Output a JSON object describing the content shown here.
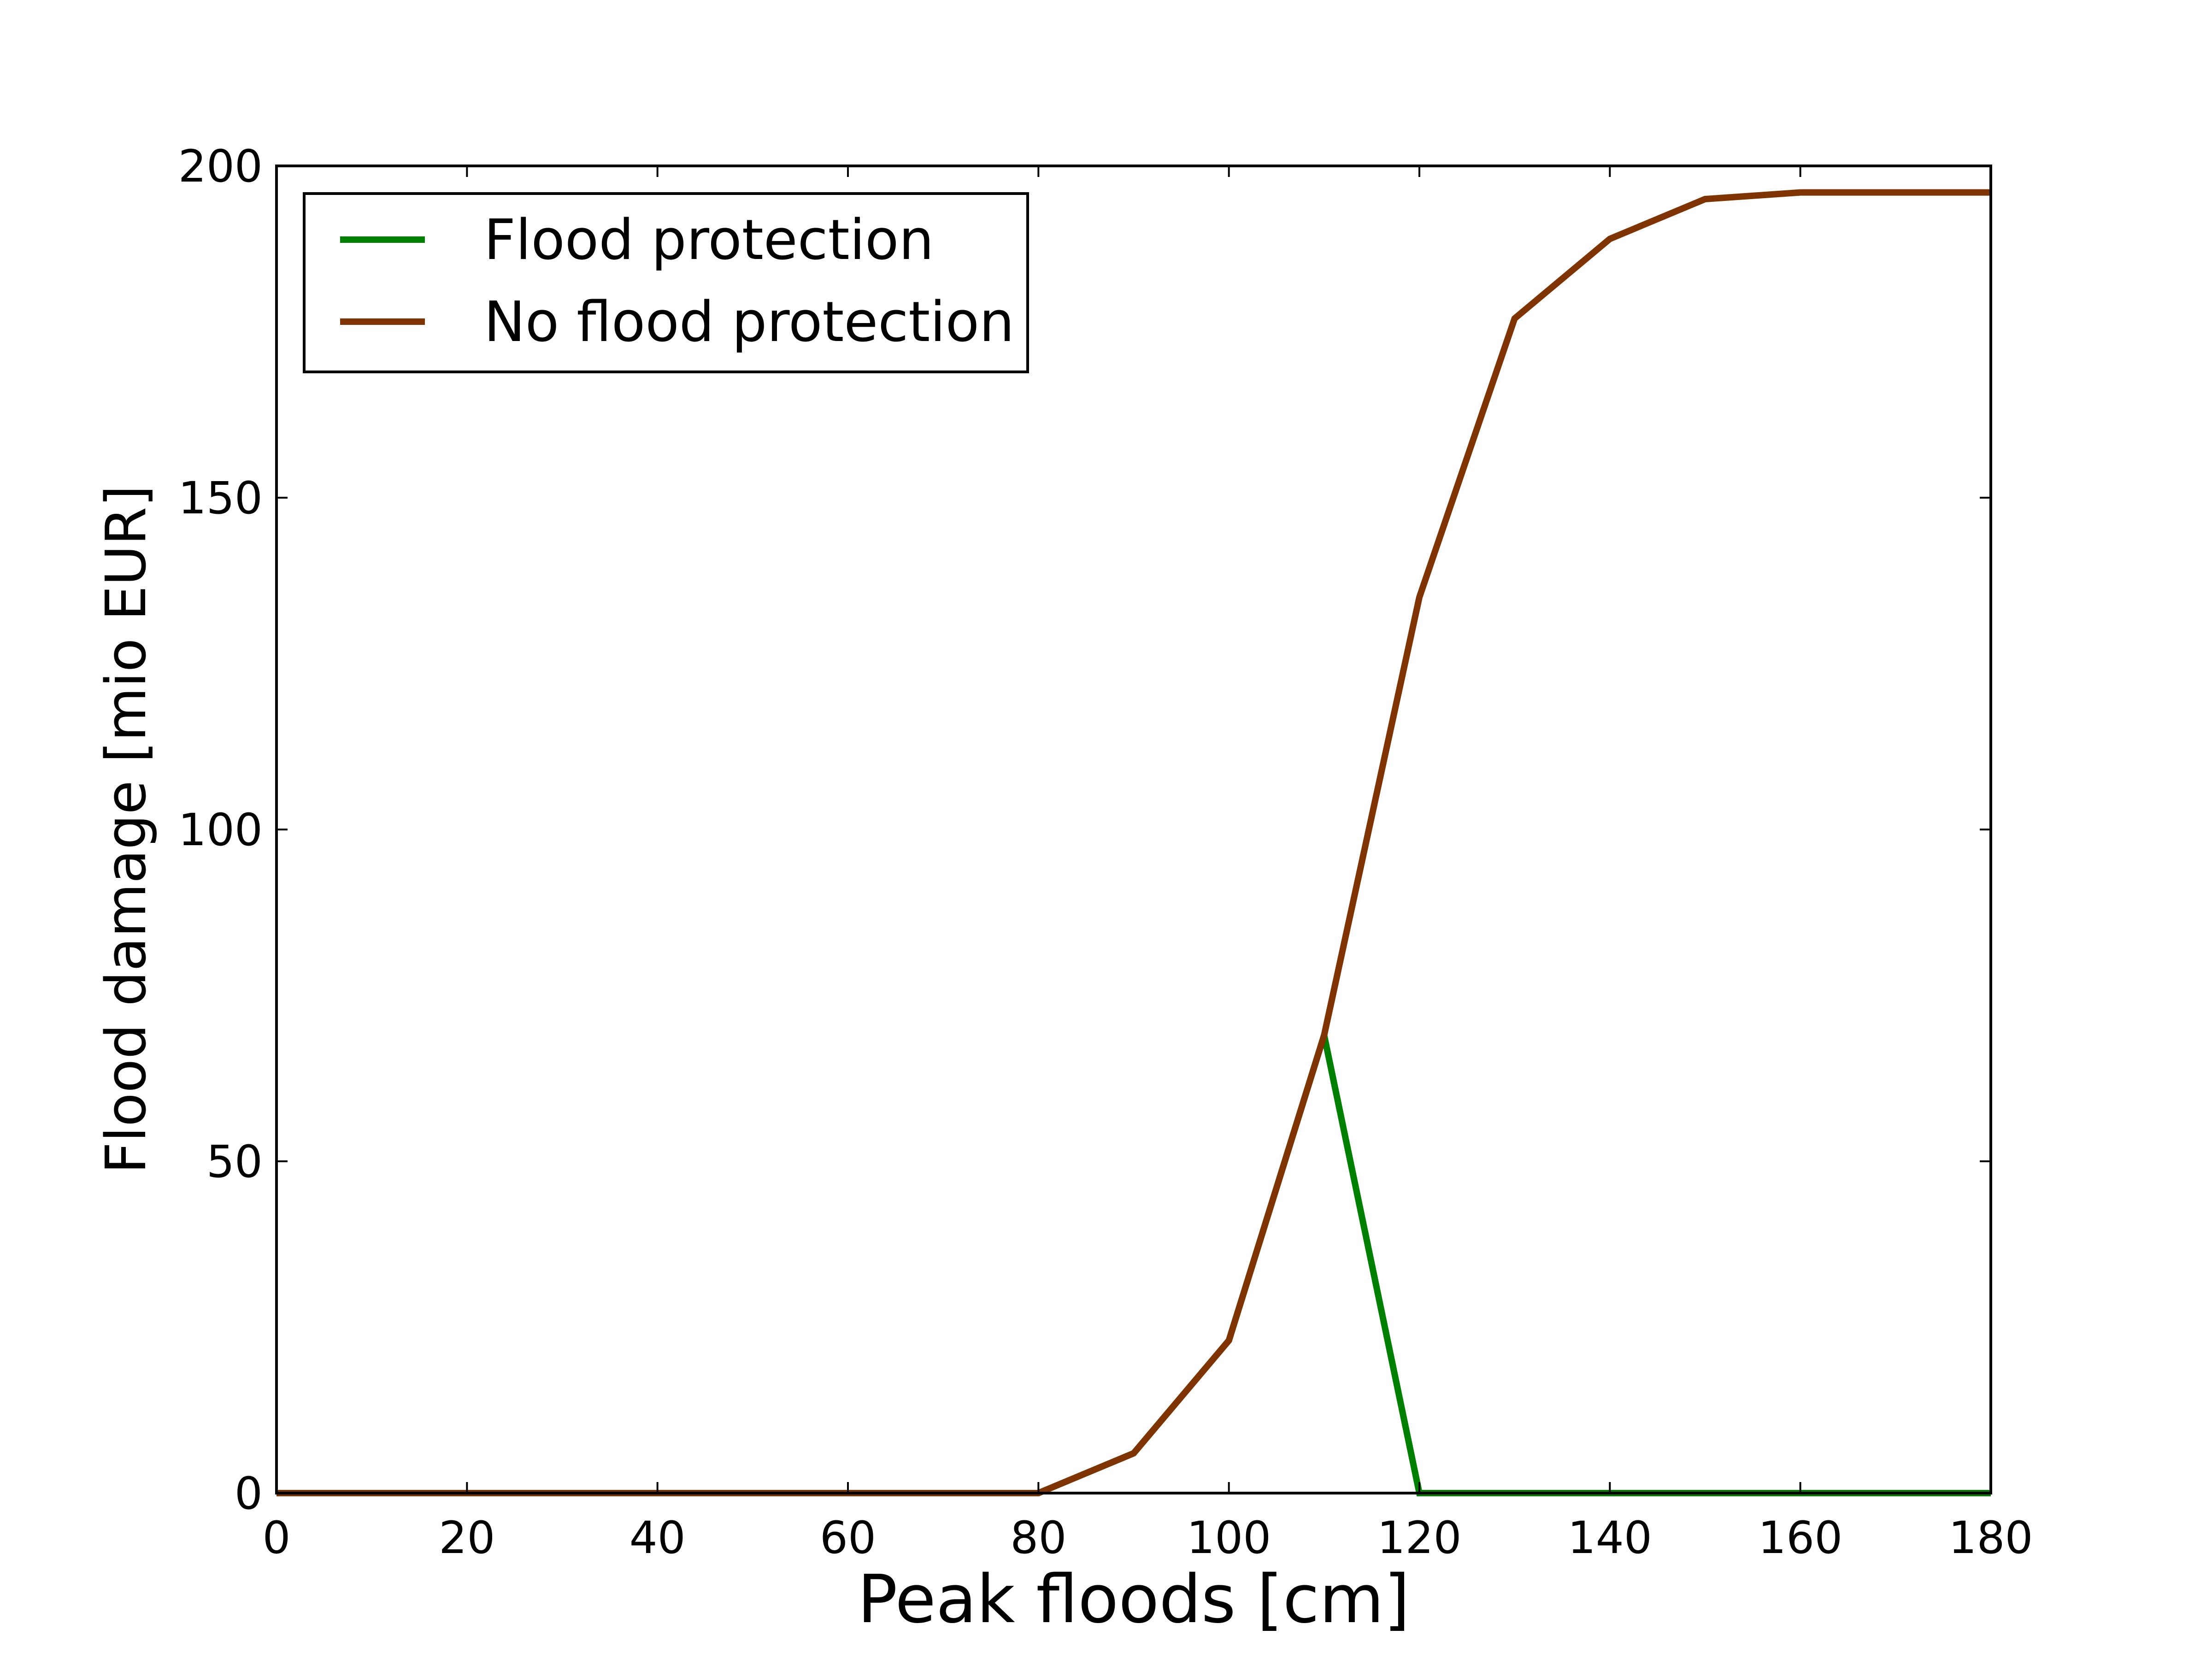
{
  "chart_data": {
    "type": "line",
    "title": "",
    "xlabel": "Peak floods [cm]",
    "ylabel": "Flood damage [mio EUR]",
    "xlim": [
      0,
      180
    ],
    "ylim": [
      0,
      200
    ],
    "xticks": [
      0,
      20,
      40,
      60,
      80,
      100,
      120,
      140,
      160,
      180
    ],
    "yticks": [
      0,
      50,
      100,
      150,
      200
    ],
    "x": [
      0,
      10,
      20,
      30,
      40,
      50,
      60,
      70,
      80,
      90,
      100,
      110,
      120,
      130,
      140,
      150,
      160,
      170,
      180
    ],
    "series": [
      {
        "name": "Flood protection",
        "color": "#008000",
        "values": [
          0,
          0,
          0,
          0,
          0,
          0,
          0,
          0,
          0,
          6,
          23,
          69,
          0,
          0,
          0,
          0,
          0,
          0,
          0
        ]
      },
      {
        "name": "No flood protection",
        "color": "#7f3300",
        "values": [
          0,
          0,
          0,
          0,
          0,
          0,
          0,
          0,
          0,
          6,
          23,
          69,
          135,
          177,
          189,
          195,
          196,
          196,
          196
        ]
      }
    ],
    "grid": false,
    "legend_position": "top-left"
  }
}
